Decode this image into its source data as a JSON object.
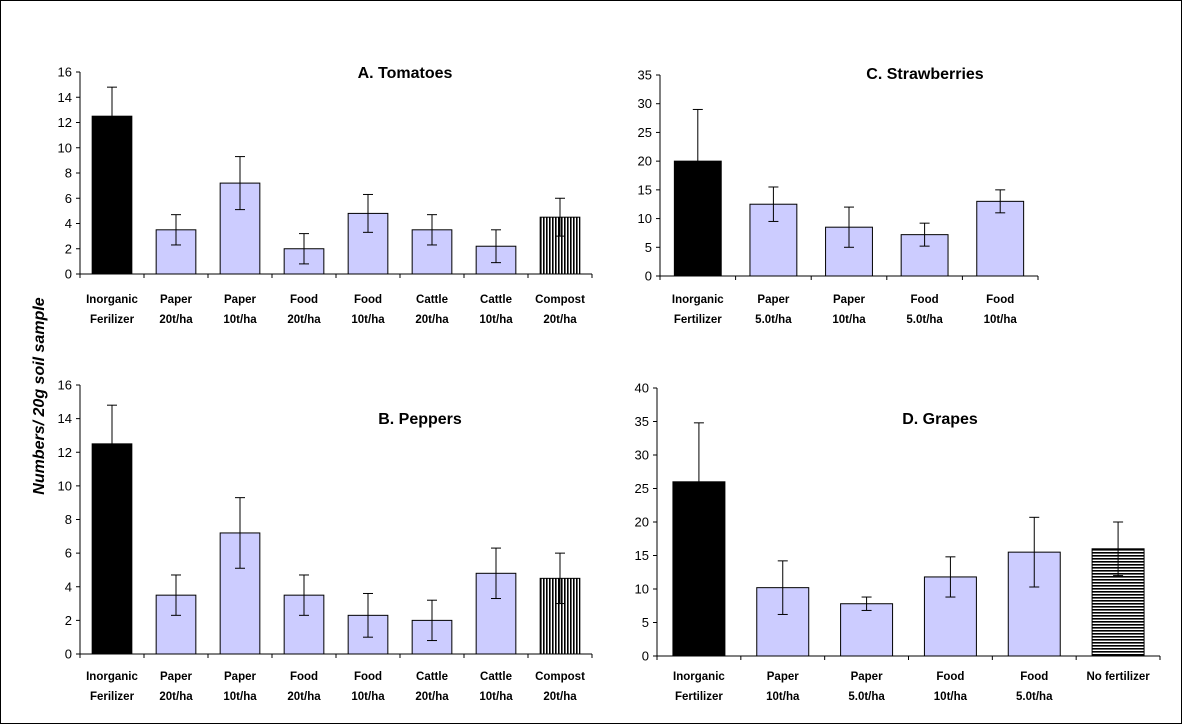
{
  "figure": {
    "ylabel": "Numbers/ 20g soil sample"
  },
  "colors": {
    "black": "#000000",
    "lavender": "#ccccff",
    "stroke": "#000000"
  },
  "chart_data": [
    {
      "id": "A",
      "type": "bar",
      "title": "A. Tomatoes",
      "ylim": [
        0,
        16
      ],
      "yticks": [
        0,
        2,
        4,
        6,
        8,
        10,
        12,
        14,
        16
      ],
      "categories": [
        [
          "Inorganic",
          "Ferilizer"
        ],
        [
          "Paper",
          "20t/ha"
        ],
        [
          "Paper",
          "10t/ha"
        ],
        [
          "Food",
          "20t/ha"
        ],
        [
          "Food",
          "10t/ha"
        ],
        [
          "Cattle",
          "20t/ha"
        ],
        [
          "Cattle",
          "10t/ha"
        ],
        [
          "Compost",
          "20t/ha"
        ]
      ],
      "values": [
        12.5,
        3.5,
        7.2,
        2.0,
        4.8,
        3.5,
        2.2,
        4.5
      ],
      "errors": [
        2.3,
        1.2,
        2.1,
        1.2,
        1.5,
        1.2,
        1.3,
        1.5
      ],
      "fills": [
        "black",
        "lavender",
        "lavender",
        "lavender",
        "lavender",
        "lavender",
        "lavender",
        "vstripe"
      ]
    },
    {
      "id": "C",
      "type": "bar",
      "title": "C. Strawberries",
      "ylim": [
        0,
        35
      ],
      "yticks": [
        0,
        5,
        10,
        15,
        20,
        25,
        30,
        35
      ],
      "categories": [
        [
          "Inorganic",
          "Fertilizer"
        ],
        [
          "Paper",
          "5.0t/ha"
        ],
        [
          "Paper",
          "10t/ha"
        ],
        [
          "Food",
          "5.0t/ha"
        ],
        [
          "Food",
          "10t/ha"
        ]
      ],
      "values": [
        20.0,
        12.5,
        8.5,
        7.2,
        13.0
      ],
      "errors": [
        9.0,
        3.0,
        3.5,
        2.0,
        2.0
      ],
      "fills": [
        "black",
        "lavender",
        "lavender",
        "lavender",
        "lavender"
      ]
    },
    {
      "id": "B",
      "type": "bar",
      "title": "B. Peppers",
      "ylim": [
        0,
        16
      ],
      "yticks": [
        0,
        2,
        4,
        6,
        8,
        10,
        12,
        14,
        16
      ],
      "categories": [
        [
          "Inorganic",
          "Ferilizer"
        ],
        [
          "Paper",
          "20t/ha"
        ],
        [
          "Paper",
          "10t/ha"
        ],
        [
          "Food",
          "20t/ha"
        ],
        [
          "Food",
          "10t/ha"
        ],
        [
          "Cattle",
          "20t/ha"
        ],
        [
          "Cattle",
          "10t/ha"
        ],
        [
          "Compost",
          "20t/ha"
        ]
      ],
      "values": [
        12.5,
        3.5,
        7.2,
        3.5,
        2.3,
        2.0,
        4.8,
        4.5
      ],
      "errors": [
        2.3,
        1.2,
        2.1,
        1.2,
        1.3,
        1.2,
        1.5,
        1.5
      ],
      "fills": [
        "black",
        "lavender",
        "lavender",
        "lavender",
        "lavender",
        "lavender",
        "lavender",
        "vstripe"
      ]
    },
    {
      "id": "D",
      "type": "bar",
      "title": "D. Grapes",
      "ylim": [
        0,
        40
      ],
      "yticks": [
        0,
        5,
        10,
        15,
        20,
        25,
        30,
        35,
        40
      ],
      "categories": [
        [
          "Inorganic",
          "Fertilizer"
        ],
        [
          "Paper",
          "10t/ha"
        ],
        [
          "Paper",
          "5.0t/ha"
        ],
        [
          "Food",
          "10t/ha"
        ],
        [
          "Food",
          "5.0t/ha"
        ],
        [
          "No fertilizer"
        ]
      ],
      "values": [
        26.0,
        10.2,
        7.8,
        11.8,
        15.5,
        16.0
      ],
      "errors": [
        8.8,
        4.0,
        1.0,
        3.0,
        5.2,
        4.0
      ],
      "fills": [
        "black",
        "lavender",
        "lavender",
        "lavender",
        "lavender",
        "hstripe"
      ]
    }
  ]
}
